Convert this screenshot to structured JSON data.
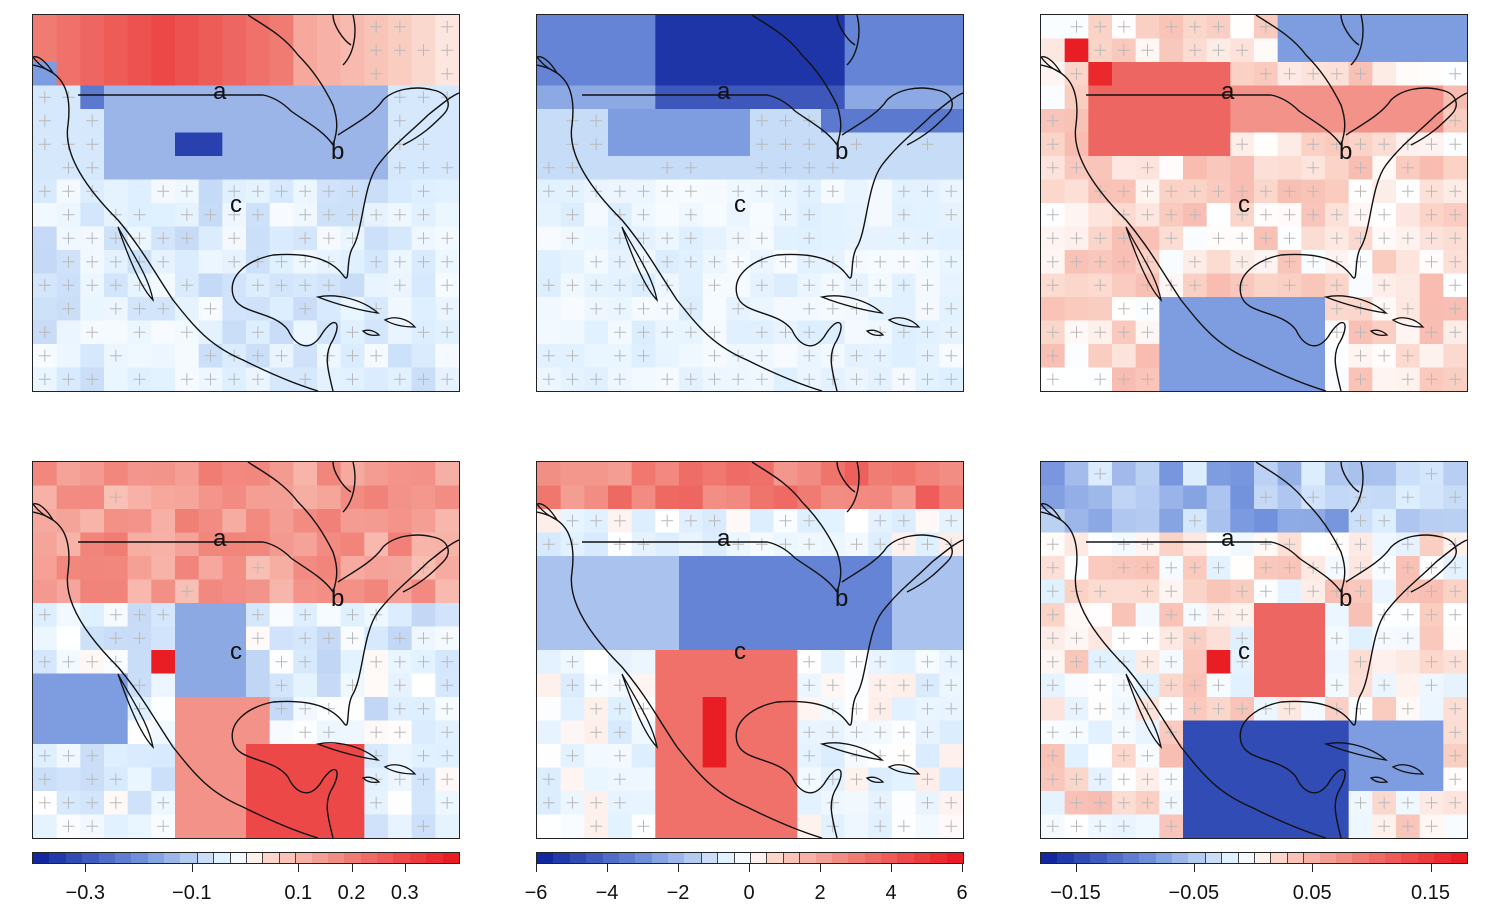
{
  "map_panels": [
    {
      "id": "top-left",
      "labels": [
        "a",
        "b",
        "c"
      ],
      "scale": "group1"
    },
    {
      "id": "top-middle",
      "labels": [
        "a",
        "b",
        "c"
      ],
      "scale": "group2"
    },
    {
      "id": "top-right",
      "labels": [
        "a",
        "b",
        "c"
      ],
      "scale": "group3"
    },
    {
      "id": "bottom-left",
      "labels": [
        "a",
        "b",
        "c"
      ],
      "scale": "group1"
    },
    {
      "id": "bottom-middle",
      "labels": [
        "a",
        "b",
        "c"
      ],
      "scale": "group2"
    },
    {
      "id": "bottom-right",
      "labels": [
        "a",
        "b",
        "c"
      ],
      "scale": "group3"
    }
  ],
  "colorbars": [
    {
      "name": "group1",
      "min": -0.4,
      "max": 0.4,
      "ticks": [
        "−0.3",
        "−0.1",
        "0.1",
        "0.2",
        "0.3"
      ],
      "tick_values": [
        -0.3,
        -0.1,
        0.1,
        0.2,
        0.3
      ]
    },
    {
      "name": "group2",
      "min": -6,
      "max": 6,
      "ticks": [
        "−6",
        "−4",
        "−2",
        "0",
        "2",
        "4",
        "6"
      ],
      "tick_values": [
        -6,
        -4,
        -2,
        0,
        2,
        4,
        6
      ]
    },
    {
      "name": "group3",
      "min": -0.18,
      "max": 0.18,
      "ticks": [
        "−0.15",
        "−0.05",
        "0.05",
        "0.15"
      ],
      "tick_values": [
        -0.15,
        -0.05,
        0.05,
        0.15
      ]
    }
  ],
  "palette": {
    "deep_blue": "#0a1f9b",
    "mid_blue": "#6f8fdb",
    "pale_blue": "#dff0ff",
    "white": "#ffffff",
    "pale_red": "#fbd4c8",
    "mid_red": "#f07b72",
    "deep_red": "#e8141c"
  }
}
